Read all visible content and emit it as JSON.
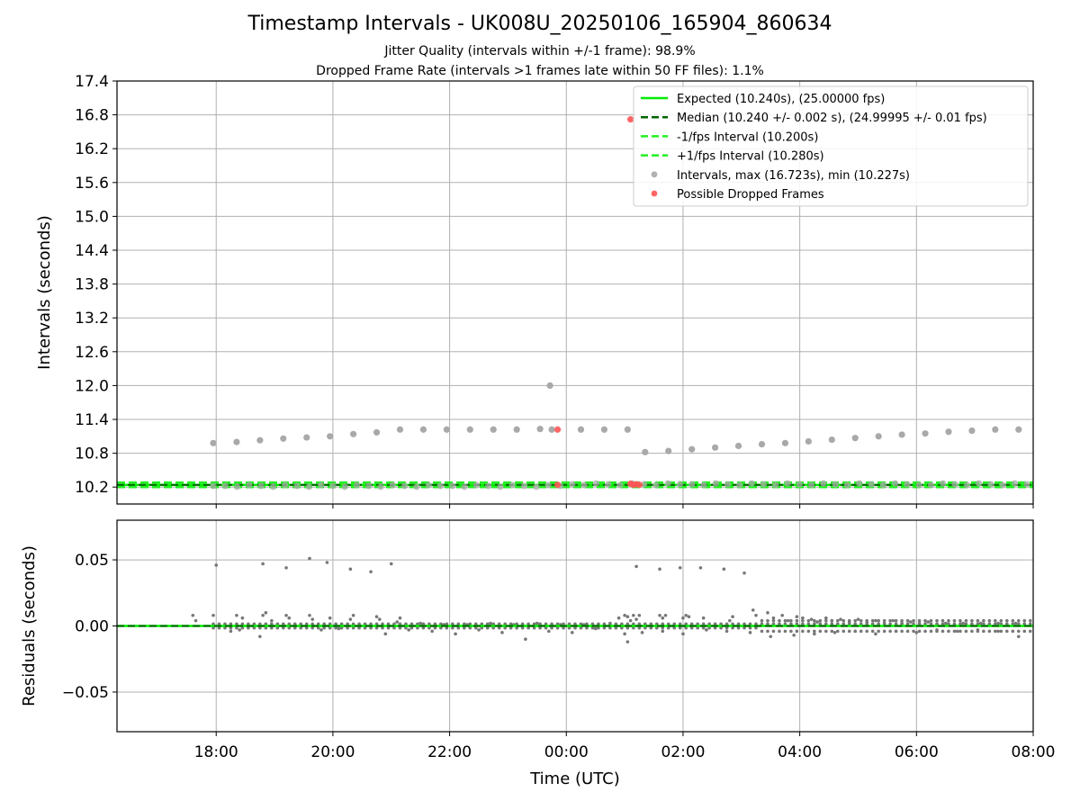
{
  "figure": {
    "title": "Timestamp Intervals - UK008U_20250106_165904_860634",
    "subtitle_1": "Jitter Quality (intervals within +/-1 frame): 98.9%",
    "subtitle_2": "Dropped Frame Rate (intervals >1 frames late within 50 FF files): 1.1%"
  },
  "colors": {
    "expected": "#00ee00",
    "median": "#006400",
    "interval_band": "#22ee22",
    "points": "#a9a9a9",
    "dropped": "#ff5555",
    "residuals": "#777777",
    "grid": "#b0b0b0"
  },
  "chart_data": [
    {
      "type": "scatter",
      "panel": "top",
      "xlabel": "",
      "ylabel": "Intervals (seconds)",
      "xlim_hours": [
        -7.7,
        8.0
      ],
      "ylim": [
        9.9,
        17.4
      ],
      "y_ticks": [
        "10.2",
        "10.8",
        "11.4",
        "12.0",
        "12.6",
        "13.2",
        "13.8",
        "14.4",
        "15.0",
        "15.6",
        "16.2",
        "16.8",
        "17.4"
      ],
      "y_tick_values": [
        10.2,
        10.8,
        11.4,
        12.0,
        12.6,
        13.2,
        13.8,
        14.4,
        15.0,
        15.6,
        16.2,
        16.8,
        17.4
      ],
      "grid": "on",
      "legend_position": "top-right",
      "legend": [
        {
          "label": "Expected (10.240s), (25.00000 fps)",
          "style": "solid-line",
          "color": "#00ee00"
        },
        {
          "label": "Median (10.240 +/- 0.002 s), (24.99995 +/- 0.01 fps)",
          "style": "dashed-line",
          "color": "#006400"
        },
        {
          "label": "-1/fps Interval (10.200s)",
          "style": "dashed-line",
          "color": "#22ee22"
        },
        {
          "label": "+1/fps Interval (10.280s)",
          "style": "dashed-line",
          "color": "#22ee22"
        },
        {
          "label": "Intervals, max (16.723s), min (10.227s)",
          "style": "marker",
          "color": "#a9a9a9"
        },
        {
          "label": "Possible Dropped Frames",
          "style": "marker",
          "color": "#ff5555"
        }
      ],
      "reference_lines": {
        "expected": 10.24,
        "median": 10.24,
        "minus_1_fps": 10.2,
        "plus_1_fps": 10.28
      },
      "series": [
        {
          "name": "Intervals",
          "x_hours": [
            -6.05,
            -5.65,
            -5.25,
            -4.85,
            -4.45,
            -4.05,
            -3.65,
            -3.25,
            -2.85,
            -2.45,
            -2.05,
            -1.65,
            -1.25,
            -0.85,
            -0.45,
            -0.25,
            0.25,
            0.65,
            1.05,
            1.35,
            1.75,
            2.15,
            2.55,
            2.95,
            3.35,
            3.75,
            4.15,
            4.55,
            4.95,
            5.35,
            5.75,
            6.15,
            6.55,
            6.95,
            7.35,
            7.75
          ],
          "y": [
            10.98,
            11.0,
            11.03,
            11.06,
            11.08,
            11.1,
            11.14,
            11.17,
            11.22,
            11.22,
            11.22,
            11.22,
            11.22,
            11.22,
            11.23,
            11.22,
            11.22,
            11.22,
            11.22,
            10.82,
            10.84,
            10.87,
            10.9,
            10.93,
            10.96,
            10.98,
            11.01,
            11.04,
            11.07,
            11.1,
            11.13,
            11.15,
            11.18,
            11.2,
            11.22,
            11.22
          ]
        },
        {
          "name": "Intervals (high)",
          "x_hours": [
            -0.28
          ],
          "y": [
            12.0
          ]
        },
        {
          "name": "Possible Dropped Frames",
          "x_hours": [
            -0.15,
            -0.15,
            1.1,
            1.15,
            1.2,
            1.25,
            1.1
          ],
          "y": [
            11.22,
            10.24,
            10.26,
            10.24,
            10.25,
            10.24,
            16.72
          ]
        }
      ]
    },
    {
      "type": "scatter",
      "panel": "bottom",
      "xlabel": "Time (UTC)",
      "ylabel": "Residuals (seconds)",
      "xlim_hours": [
        -7.7,
        8.0
      ],
      "ylim": [
        -0.08,
        0.08
      ],
      "y_ticks": [
        "0.05",
        "0.00",
        "−0.05"
      ],
      "y_tick_values": [
        0.05,
        0.0,
        -0.05
      ],
      "x_ticks": [
        "18:00",
        "20:00",
        "22:00",
        "00:00",
        "02:00",
        "04:00",
        "06:00",
        "08:00"
      ],
      "x_tick_hours": [
        -6,
        -4,
        -2,
        0,
        2,
        4,
        6,
        8
      ],
      "grid": "on",
      "series": [
        {
          "name": "Residuals",
          "x_hours": [
            -6.4,
            -6.35,
            -6.05,
            -5.65,
            -5.55,
            -5.2,
            -5.15,
            -5.05,
            -4.8,
            -4.75,
            -4.4,
            -4.35,
            -4.05,
            -3.7,
            -3.65,
            -3.25,
            -3.2,
            -2.9,
            -2.85,
            -2.5,
            -2.1,
            -1.7,
            -1.3,
            -0.9,
            -0.5,
            -0.1,
            0.3,
            0.75,
            0.9,
            1.0,
            1.05,
            1.1,
            1.15,
            1.2,
            1.25,
            1.6,
            1.65,
            1.7,
            2.0,
            2.05,
            2.1,
            2.35,
            2.8,
            2.85,
            3.2,
            3.25,
            3.45,
            3.55,
            3.7,
            3.8,
            3.95,
            4.05,
            4.2,
            4.3,
            4.45,
            4.55,
            4.7,
            4.85,
            5.0,
            5.15,
            5.3,
            5.45,
            5.6,
            5.75,
            5.9,
            6.05,
            6.2,
            6.35,
            6.5,
            6.65,
            6.8,
            6.95,
            7.1,
            7.25,
            7.4,
            7.55,
            7.7,
            7.85,
            -6.0,
            -5.2,
            -4.8,
            -4.4,
            -4.1,
            -3.7,
            -3.35,
            -3.0,
            1.2,
            1.6,
            1.95,
            2.3,
            2.7,
            3.05,
            -5.75,
            -5.6,
            -5.25,
            -4.2,
            -3.9,
            -3.1,
            -2.7,
            -2.3,
            -1.9,
            -1.5,
            -1.1,
            -0.7,
            -0.3,
            0.1,
            0.5,
            1.0,
            1.05,
            1.3,
            1.65,
            2.0,
            2.4,
            2.75,
            3.15,
            3.5,
            3.9,
            4.25,
            4.6,
            4.95,
            5.3,
            5.65,
            6.0,
            6.35,
            6.7,
            7.05,
            7.4,
            7.75
          ],
          "y": [
            0.008,
            0.004,
            0.008,
            0.008,
            0.006,
            0.008,
            0.01,
            0.004,
            0.008,
            0.006,
            0.008,
            0.005,
            0.006,
            0.005,
            0.008,
            0.007,
            0.005,
            0.003,
            0.006,
            0.002,
            0.001,
            0.001,
            0.002,
            0.001,
            0.002,
            0.001,
            0.001,
            0.002,
            0.006,
            0.008,
            0.007,
            0.004,
            0.008,
            0.005,
            0.008,
            0.008,
            0.006,
            0.008,
            0.006,
            0.008,
            0.007,
            0.006,
            0.004,
            0.007,
            0.012,
            0.008,
            0.01,
            0.006,
            0.008,
            0.004,
            0.007,
            0.006,
            0.005,
            0.003,
            0.006,
            0.004,
            0.005,
            0.003,
            0.005,
            0.003,
            0.004,
            0.002,
            0.004,
            0.002,
            0.003,
            0.002,
            0.003,
            0.001,
            0.002,
            0.001,
            0.002,
            0.001,
            0.002,
            0.001,
            0.002,
            0.001,
            0.002,
            0.001,
            0.046,
            0.047,
            0.044,
            0.051,
            0.048,
            0.043,
            0.041,
            0.047,
            0.045,
            0.043,
            0.044,
            0.044,
            0.043,
            0.04,
            -0.004,
            -0.003,
            -0.008,
            -0.003,
            -0.002,
            -0.006,
            -0.003,
            -0.004,
            -0.006,
            -0.003,
            -0.005,
            -0.01,
            -0.004,
            -0.005,
            -0.002,
            -0.006,
            -0.012,
            -0.005,
            -0.004,
            -0.006,
            -0.003,
            -0.004,
            -0.005,
            -0.008,
            -0.007,
            -0.006,
            -0.005,
            -0.004,
            -0.006,
            -0.004,
            -0.005,
            -0.003,
            -0.004,
            -0.003,
            -0.004,
            -0.008
          ]
        }
      ]
    }
  ]
}
